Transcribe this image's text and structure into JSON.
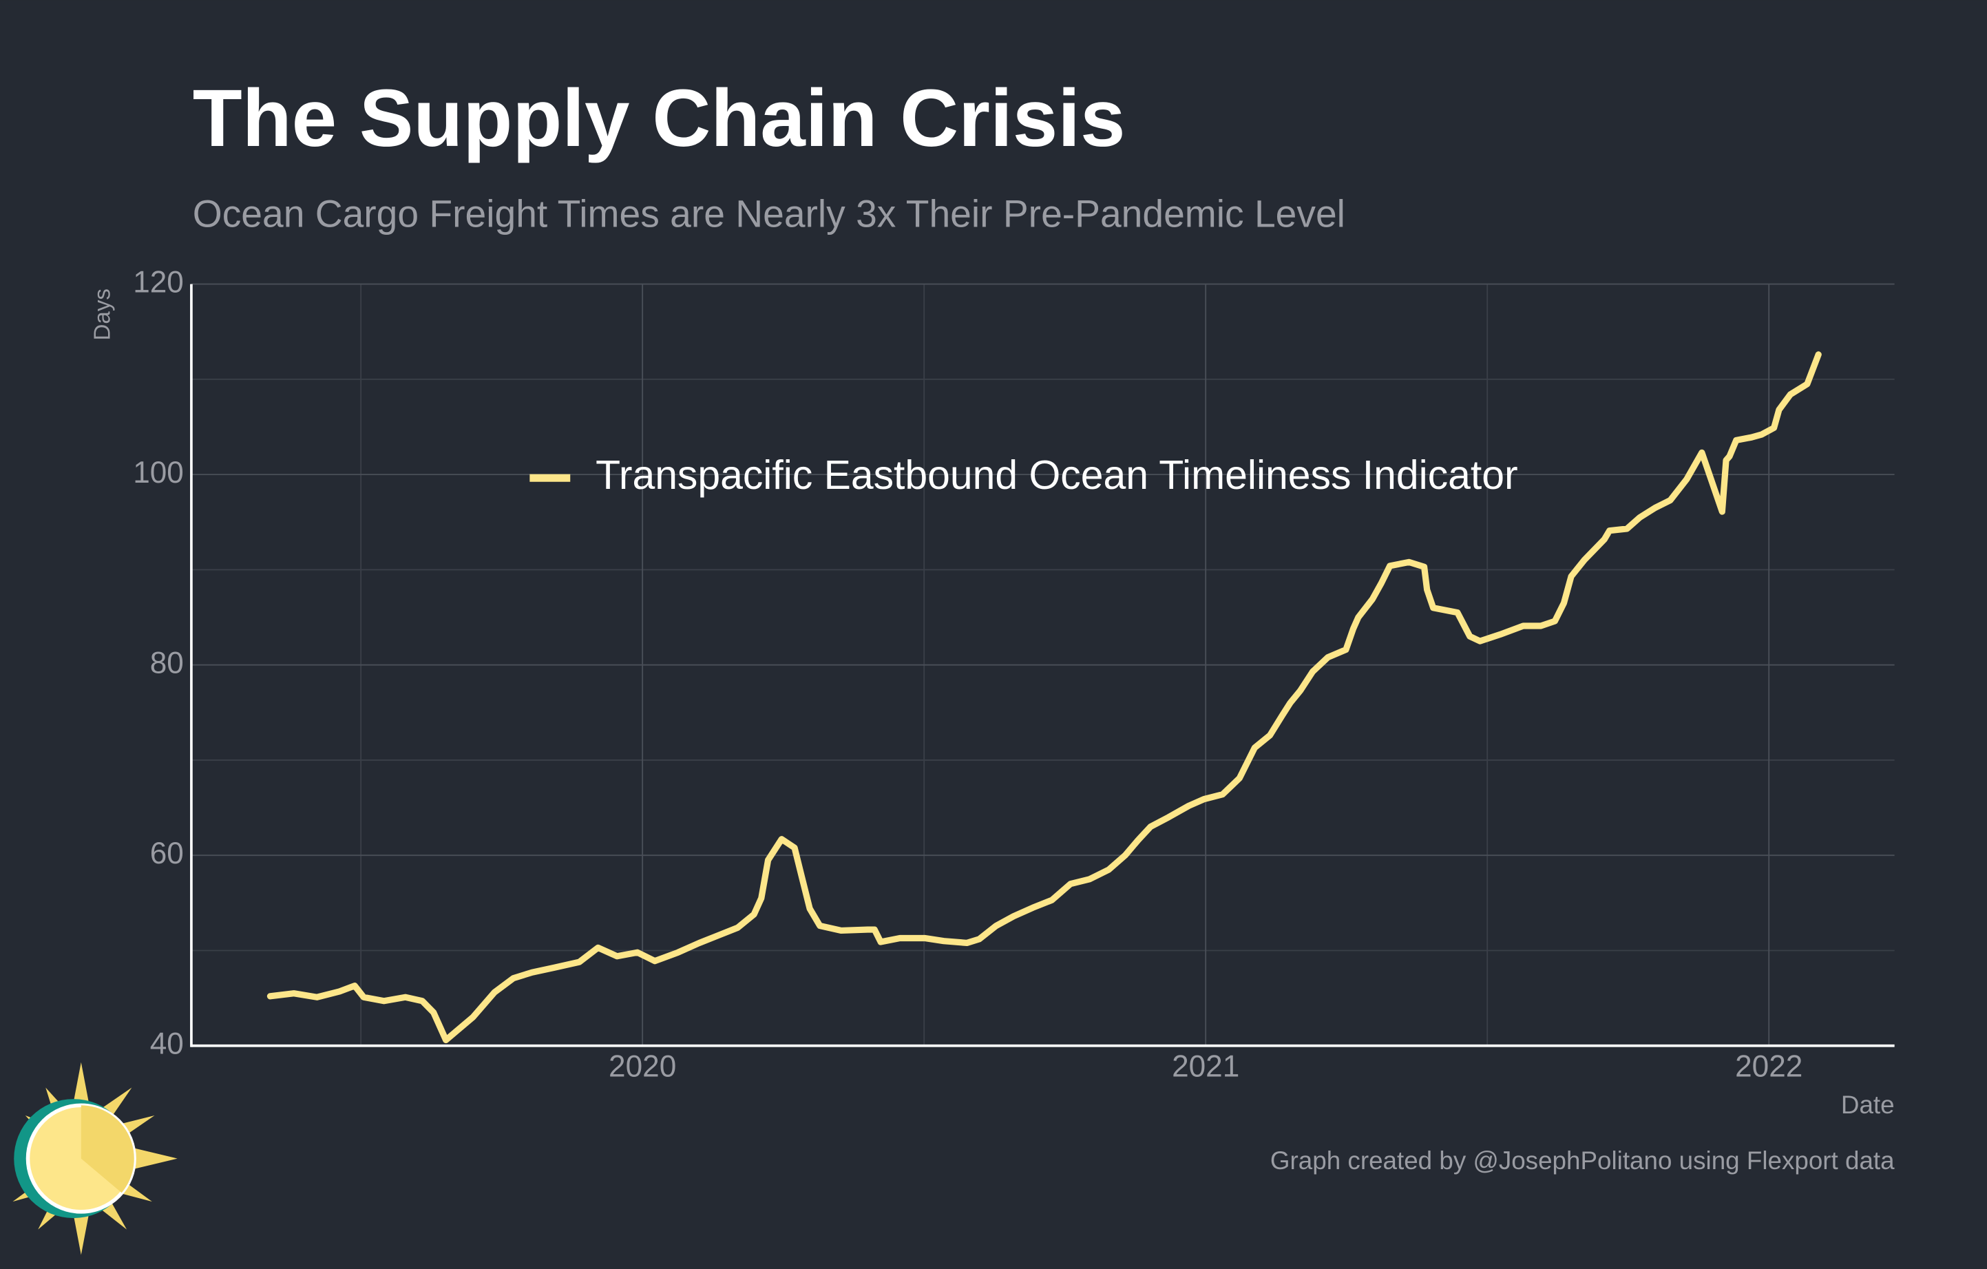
{
  "chart_data": {
    "type": "line",
    "title": "The Supply Chain Crisis",
    "subtitle": "Ocean Cargo Freight Times are Nearly 3x Their Pre-Pandemic Level",
    "y_label": "Days",
    "x_label": "Date",
    "credit": "Graph created by @JosephPolitano using Flexport data",
    "legend_position": "top",
    "grid": true,
    "xlim": [
      2019.199,
      2022.223
    ],
    "xticks": [
      2020,
      2021,
      2022
    ],
    "ylim": [
      40,
      120
    ],
    "yticks": [
      40,
      60,
      80,
      100,
      120
    ],
    "x": [
      2019.339,
      2019.381,
      2019.422,
      2019.462,
      2019.489,
      2019.505,
      2019.541,
      2019.579,
      2019.609,
      2019.629,
      2019.651,
      2019.669,
      2019.699,
      2019.737,
      2019.771,
      2019.804,
      2019.843,
      2019.888,
      2019.921,
      2019.955,
      2019.991,
      2020.022,
      2020.063,
      2020.101,
      2020.135,
      2020.169,
      2020.198,
      2020.211,
      2020.223,
      2020.247,
      2020.27,
      2020.283,
      2020.297,
      2020.315,
      2020.353,
      2020.4,
      2020.412,
      2020.423,
      2020.457,
      2020.502,
      2020.535,
      2020.576,
      2020.598,
      2020.628,
      2020.659,
      2020.693,
      2020.727,
      2020.76,
      2020.794,
      2020.828,
      2020.857,
      2020.88,
      2020.902,
      2020.934,
      2020.97,
      2020.997,
      2021.03,
      2021.06,
      2021.087,
      2021.114,
      2021.136,
      2021.15,
      2021.168,
      2021.19,
      2021.217,
      2021.249,
      2021.262,
      2021.271,
      2021.296,
      2021.312,
      2021.327,
      2021.361,
      2021.388,
      2021.393,
      2021.404,
      2021.447,
      2021.469,
      2021.487,
      2021.523,
      2021.564,
      2021.595,
      2021.62,
      2021.636,
      2021.649,
      2021.672,
      2021.708,
      2021.717,
      2021.748,
      2021.771,
      2021.798,
      2021.825,
      2021.854,
      2021.881,
      2021.917,
      2021.924,
      2021.93,
      2021.942,
      2021.969,
      2021.987,
      2022.009,
      2022.018,
      2022.038,
      2022.068,
      2022.088
    ],
    "series": [
      {
        "name": "Transpacific Eastbound Ocean Timeliness Indicator",
        "color": "#fde68a",
        "values": [
          45.2,
          45.5,
          45.1,
          45.7,
          46.3,
          45.1,
          44.7,
          45.1,
          44.7,
          43.5,
          40.6,
          41.5,
          43.0,
          45.6,
          47.1,
          47.7,
          48.2,
          48.8,
          50.3,
          49.4,
          49.8,
          48.9,
          49.8,
          50.8,
          51.6,
          52.4,
          53.8,
          55.5,
          59.5,
          61.7,
          60.8,
          57.7,
          54.4,
          52.6,
          52.1,
          52.2,
          52.2,
          50.9,
          51.3,
          51.3,
          51.0,
          50.8,
          51.2,
          52.6,
          53.6,
          54.5,
          55.3,
          57.0,
          57.5,
          58.5,
          60.0,
          61.6,
          63.0,
          64.0,
          65.2,
          65.9,
          66.4,
          68.1,
          71.3,
          72.6,
          74.7,
          76.0,
          77.3,
          79.3,
          80.8,
          81.6,
          83.8,
          85.0,
          86.9,
          88.6,
          90.4,
          90.8,
          90.3,
          87.9,
          86.0,
          85.5,
          83.0,
          82.5,
          83.2,
          84.1,
          84.1,
          84.6,
          86.5,
          89.3,
          91.0,
          93.2,
          94.1,
          94.3,
          95.5,
          96.5,
          97.3,
          99.5,
          102.3,
          96.1,
          101.5,
          101.9,
          103.6,
          103.9,
          104.2,
          104.9,
          106.8,
          108.4,
          109.5,
          112.6
        ]
      }
    ]
  }
}
